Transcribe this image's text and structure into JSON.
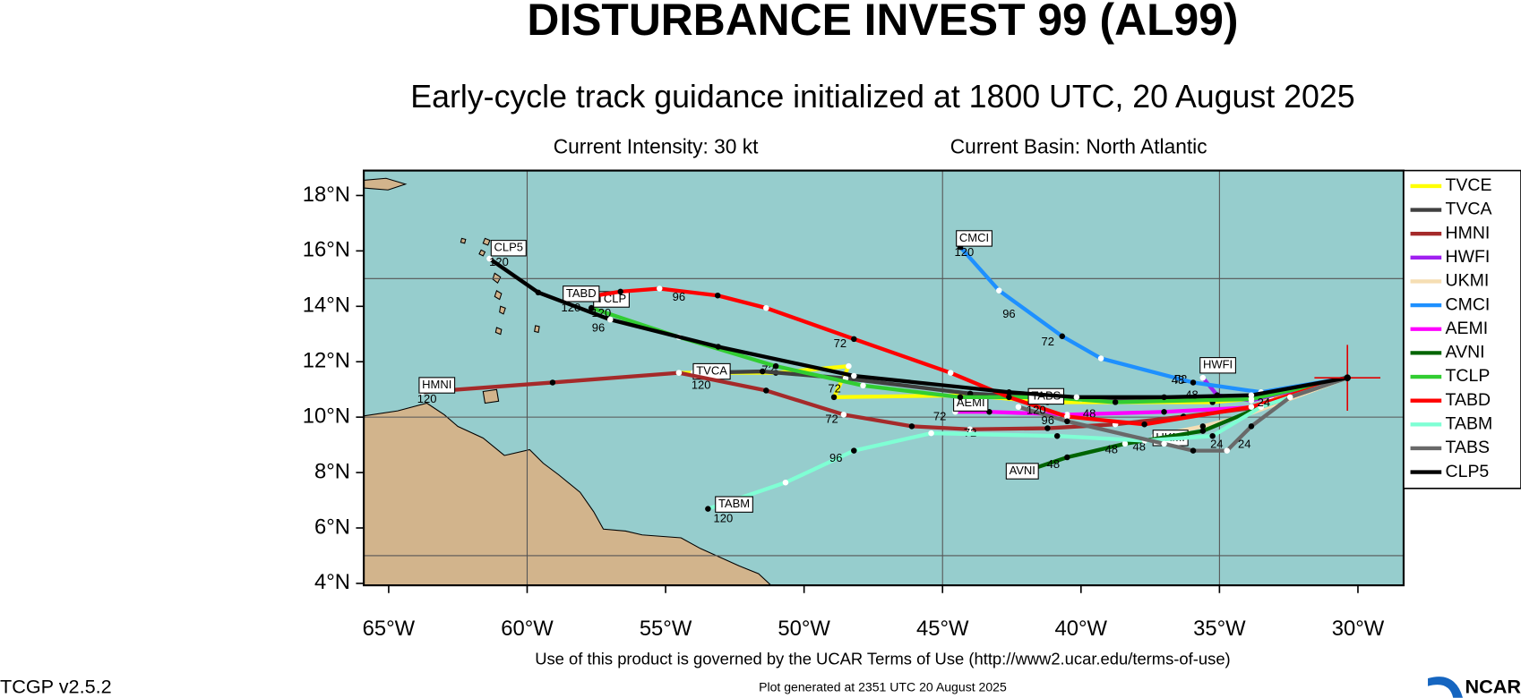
{
  "map": {
    "title": "DISTURBANCE INVEST 99 (AL99)",
    "subtitle": "Early-cycle track guidance initialized at 1800 UTC, 20 August 2025",
    "intensity": "Current Intensity: 30 kt",
    "basin": "Current Basin: North Atlantic",
    "xlim": [
      -65.9,
      -28.35
    ],
    "ylim": [
      3.93,
      18.9
    ],
    "xticks": [
      {
        "value": -65,
        "label": "65°W"
      },
      {
        "value": -60,
        "label": "60°W"
      },
      {
        "value": -55,
        "label": "55°W"
      },
      {
        "value": -50,
        "label": "50°W"
      },
      {
        "value": -45,
        "label": "45°W"
      },
      {
        "value": -40,
        "label": "40°W"
      },
      {
        "value": -35,
        "label": "35°W"
      },
      {
        "value": -30,
        "label": "30°W"
      }
    ],
    "yticks": [
      {
        "value": 18,
        "label": "18°N"
      },
      {
        "value": 16,
        "label": "16°N"
      },
      {
        "value": 14,
        "label": "14°N"
      },
      {
        "value": 12,
        "label": "12°N"
      },
      {
        "value": 10,
        "label": "10°N"
      },
      {
        "value": 8,
        "label": "8°N"
      },
      {
        "value": 6,
        "label": "6°N"
      },
      {
        "value": 4,
        "label": "4°N"
      }
    ],
    "lon_grid": [
      -60,
      -45,
      -35
    ],
    "lat_grid": [
      5,
      10,
      15
    ],
    "ocean_color": "#96cdcd",
    "land_color": "#d2b48c",
    "initial_position": {
      "lon": -30.38,
      "lat": 11.42,
      "color": "#e00000"
    },
    "tracks": [
      {
        "name": "TVCE",
        "color": "#ffff00",
        "lon": [
          -30.38,
          -33.15,
          -35.25,
          -38.76,
          -41.21,
          -44.01,
          -48.92,
          -48.39,
          -51.02,
          -54.52
        ],
        "lat": [
          11.42,
          10.72,
          10.54,
          10.54,
          10.54,
          10.79,
          10.72,
          11.84,
          11.6,
          11.6
        ],
        "hours": [
          {
            "text": "72",
            "lon": -51.3,
            "lat": 11.68
          },
          {
            "text": "72",
            "lon": -48.9,
            "lat": 11.0
          }
        ]
      },
      {
        "name": "TVCA",
        "color": "#404040",
        "lon": [
          -30.38,
          -33.3,
          -36.0,
          -40.0,
          -44.0,
          -48.5,
          -51.5,
          -54.0
        ],
        "lat": [
          11.42,
          10.8,
          10.65,
          10.65,
          10.85,
          11.4,
          11.65,
          11.6
        ],
        "label": "TVCA",
        "end_label": "120",
        "label_lon": -54.0,
        "label_lat": 11.65
      },
      {
        "name": "HMNI",
        "color": "#a52a2a",
        "lon": [
          -30.38,
          -33.5,
          -36.3,
          -38.76,
          -41.21,
          -44.01,
          -46.11,
          -48.57,
          -51.37,
          -54.52,
          -59.08,
          -63.81
        ],
        "lat": [
          11.42,
          10.37,
          10.02,
          9.74,
          9.6,
          9.56,
          9.67,
          10.09,
          10.96,
          11.6,
          11.25,
          10.9
        ],
        "label": "HMNI",
        "end_label": "120",
        "label_lon": -63.9,
        "label_lat": 11.15,
        "hours": [
          {
            "text": "72",
            "lon": -49.0,
            "lat": 9.9
          },
          {
            "text": "72",
            "lon": -44.0,
            "lat": 9.4
          }
        ]
      },
      {
        "name": "HWFI",
        "color": "#a020f0",
        "lon": [
          -30.38,
          -33.85,
          -35.08,
          -35.6
        ],
        "lat": [
          11.42,
          10.6,
          10.79,
          11.42
        ],
        "label": "HWFI",
        "label_lon": -35.7,
        "label_lat": 11.87,
        "hours": [
          {
            "text": "72",
            "lon": -36.4,
            "lat": 11.35
          }
        ]
      },
      {
        "name": "UKMI",
        "color": "#f5deb3",
        "lon": [
          -30.38,
          -34.2,
          -35.6,
          -37.35
        ],
        "lat": [
          11.42,
          10.02,
          9.67,
          9.32
        ],
        "label": "UKMI",
        "label_lon": -37.4,
        "label_lat": 9.25,
        "hours": [
          {
            "text": "48",
            "lon": -37.9,
            "lat": 8.9
          }
        ]
      },
      {
        "name": "CMCI",
        "color": "#1e90ff",
        "lon": [
          -30.38,
          -33.5,
          -35.95,
          -39.28,
          -40.68,
          -42.96,
          -44.36
        ],
        "lat": [
          11.42,
          10.9,
          11.25,
          12.12,
          12.92,
          14.57,
          16.14
        ],
        "label": "CMCI",
        "end_label": "120",
        "label_lon": -44.5,
        "label_lat": 16.45,
        "hours": [
          {
            "text": "96",
            "lon": -42.6,
            "lat": 13.7
          },
          {
            "text": "72",
            "lon": -41.2,
            "lat": 12.7
          },
          {
            "text": "48",
            "lon": -36.5,
            "lat": 11.31
          }
        ]
      },
      {
        "name": "AEMI",
        "color": "#ff00ff",
        "lon": [
          -30.38,
          -33.5,
          -37.0,
          -40.5,
          -43.31,
          -44.54
        ],
        "lat": [
          11.42,
          10.37,
          10.19,
          10.09,
          10.19,
          10.19
        ],
        "label": "AEMI",
        "label_lon": -44.6,
        "label_lat": 10.5,
        "hours": [
          {
            "text": "72",
            "lon": -45.1,
            "lat": 10.0
          },
          {
            "text": "48",
            "lon": -39.7,
            "lat": 10.1
          }
        ]
      },
      {
        "name": "AVNI",
        "color": "#006400",
        "lon": [
          -30.38,
          -33.5,
          -35.6,
          -38.41,
          -40.5,
          -42.61
        ],
        "lat": [
          11.42,
          10.37,
          9.5,
          9.04,
          8.55,
          7.85
        ],
        "label": "AVNI",
        "label_lon": -42.7,
        "label_lat": 8.05,
        "hours": [
          {
            "text": "48",
            "lon": -41.0,
            "lat": 8.27
          },
          {
            "text": "48",
            "lon": -38.9,
            "lat": 8.8
          }
        ]
      },
      {
        "name": "TCLP",
        "color": "#32cd32",
        "lon": [
          -30.38,
          -33.85,
          -38.76,
          -41.21,
          -44.36,
          -47.87,
          -51.02,
          -54.52,
          -57.68
        ],
        "lat": [
          11.42,
          10.65,
          10.54,
          10.72,
          10.72,
          11.14,
          11.84,
          12.89,
          13.94
        ],
        "label": "TCLP",
        "end_label": "120",
        "label_lon": -57.6,
        "label_lat": 14.25
      },
      {
        "name": "TABD",
        "color": "#ff0000",
        "lon": [
          -30.38,
          -33.85,
          -37.71,
          -40.5,
          -42.6,
          -44.71,
          -48.2,
          -51.37,
          -53.12,
          -55.22,
          -56.63,
          -58.38
        ],
        "lat": [
          11.42,
          10.37,
          9.74,
          10.02,
          10.72,
          11.6,
          12.82,
          13.94,
          14.39,
          14.64,
          14.53,
          14.25
        ],
        "label": "TABD",
        "end_label": "120",
        "label_lon": -58.7,
        "label_lat": 14.45,
        "hours": [
          {
            "text": "96",
            "lon": -54.52,
            "lat": 14.32
          },
          {
            "text": "72",
            "lon": -48.7,
            "lat": 12.64
          }
        ]
      },
      {
        "name": "TABM",
        "color": "#7fffd4",
        "lon": [
          -30.38,
          -33.5,
          -35.25,
          -37.7,
          -40.86,
          -45.41,
          -48.2,
          -50.67,
          -53.47
        ],
        "lat": [
          11.42,
          10.37,
          9.32,
          9.15,
          9.32,
          9.42,
          8.79,
          7.64,
          6.69
        ],
        "label": "TABM",
        "end_label": "120",
        "label_lon": -53.2,
        "label_lat": 6.85,
        "hours": [
          {
            "text": "96",
            "lon": -48.85,
            "lat": 8.5
          },
          {
            "text": "24",
            "lon": -35.1,
            "lat": 9.0
          }
        ]
      },
      {
        "name": "TABS",
        "color": "#696969",
        "lon": [
          -30.38,
          -32.45,
          -33.85,
          -34.73,
          -35.95,
          -37.0,
          -40.5,
          -42.26
        ],
        "lat": [
          11.42,
          10.72,
          9.67,
          8.79,
          8.79,
          9.04,
          9.85,
          10.37
        ],
        "label": "TABS",
        "end_label": "120",
        "label_lon": -41.9,
        "label_lat": 10.75,
        "hours": [
          {
            "text": "24",
            "lon": -34.1,
            "lat": 9.0
          },
          {
            "text": "96",
            "lon": -41.2,
            "lat": 9.85
          }
        ]
      },
      {
        "name": "CLP5",
        "color": "#000000",
        "lon": [
          -30.38,
          -33.85,
          -37.0,
          -40.16,
          -42.6,
          -48.2,
          -53.1,
          -57.0,
          -59.6,
          -61.36
        ],
        "lat": [
          11.42,
          10.79,
          10.72,
          10.72,
          10.9,
          11.49,
          12.54,
          13.52,
          14.5,
          15.72
        ],
        "label": "CLP5",
        "end_label": "120",
        "label_lon": -61.3,
        "label_lat": 16.1,
        "hours": [
          {
            "text": "96",
            "lon": -57.43,
            "lat": 13.2
          },
          {
            "text": "48",
            "lon": -36.0,
            "lat": 10.78
          },
          {
            "text": "24",
            "lon": -33.4,
            "lat": 10.5
          }
        ]
      }
    ],
    "terms": "Use of this product is governed by the UCAR Terms of Use (http://www2.ucar.edu/terms-of-use)",
    "version": "TCGP v2.5.2",
    "generated": "Plot generated at 2351 UTC   20 August 2025",
    "logo": "NCAR"
  }
}
